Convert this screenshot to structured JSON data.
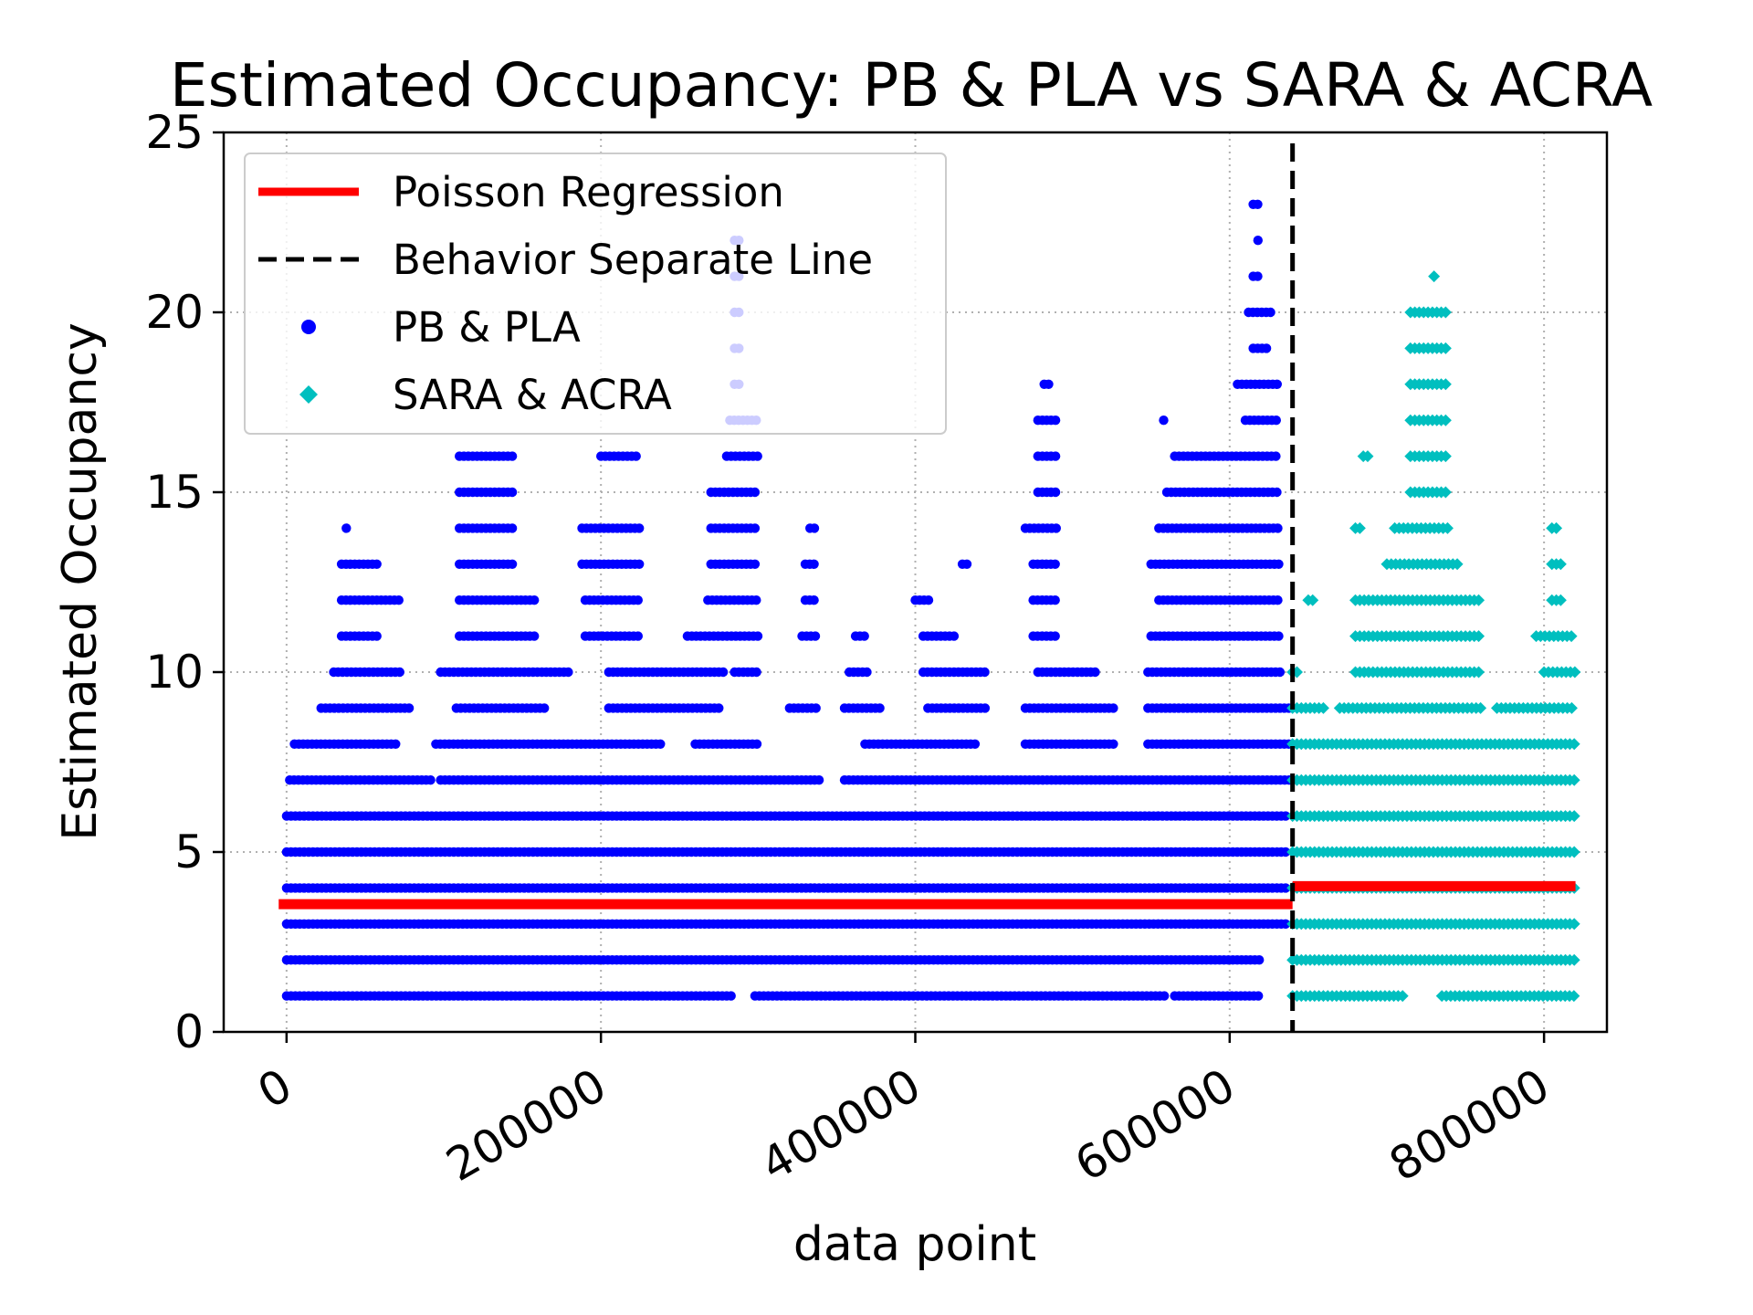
{
  "chart_data": {
    "type": "scatter",
    "title": "Estimated Occupancy: PB & PLA vs SARA & ACRA",
    "xlabel": "data point",
    "ylabel": "Estimated Occupancy",
    "xlim": [
      -40000,
      840000
    ],
    "ylim": [
      0,
      25
    ],
    "xticks": [
      0,
      200000,
      400000,
      600000,
      800000
    ],
    "xtick_labels": [
      "0",
      "200000",
      "400000",
      "600000",
      "800000"
    ],
    "yticks": [
      0,
      5,
      10,
      15,
      20,
      25
    ],
    "ytick_labels": [
      "0",
      "5",
      "10",
      "15",
      "20",
      "25"
    ],
    "grid": true,
    "legend_position": "upper-left",
    "legend": [
      {
        "label": "Poisson Regression",
        "kind": "line",
        "color": "#ff0000"
      },
      {
        "label": "Behavior Separate Line",
        "kind": "dashed-line",
        "color": "#000000"
      },
      {
        "label": "PB & PLA",
        "kind": "circle",
        "color": "#0000ff"
      },
      {
        "label": "SARA & ACRA",
        "kind": "diamond",
        "color": "#00bfbf"
      }
    ],
    "separator_x": 640000,
    "series": [
      {
        "name": "Poisson Regression",
        "kind": "line",
        "color": "#ff0000",
        "segments": [
          {
            "x": [
              -5000,
              640000
            ],
            "y": [
              3.55,
              3.55
            ]
          },
          {
            "x": [
              640000,
              820000
            ],
            "y": [
              4.05,
              4.05
            ]
          }
        ]
      },
      {
        "name": "PB & PLA",
        "kind": "scatter",
        "marker": "circle",
        "color": "#0000ff",
        "x_range": [
          0,
          638000
        ],
        "points": [
          {
            "y": 1,
            "ranges": [
              [
                0,
                285000
              ],
              [
                298000,
                560000
              ],
              [
                565000,
                620000
              ]
            ]
          },
          {
            "y": 2,
            "ranges": [
              [
                0,
                620000
              ]
            ]
          },
          {
            "y": 3,
            "ranges": [
              [
                0,
                638000
              ]
            ]
          },
          {
            "y": 4,
            "ranges": [
              [
                0,
                638000
              ]
            ]
          },
          {
            "y": 5,
            "ranges": [
              [
                0,
                638000
              ]
            ]
          },
          {
            "y": 6,
            "ranges": [
              [
                0,
                638000
              ]
            ]
          },
          {
            "y": 7,
            "ranges": [
              [
                2000,
                92000
              ],
              [
                98000,
                340000
              ],
              [
                355000,
                638000
              ]
            ]
          },
          {
            "y": 8,
            "ranges": [
              [
                5000,
                72000
              ],
              [
                95000,
                240000
              ],
              [
                260000,
                300000
              ],
              [
                368000,
                440000
              ],
              [
                470000,
                528000
              ],
              [
                548000,
                638000
              ]
            ]
          },
          {
            "y": 9,
            "ranges": [
              [
                22000,
                78000
              ],
              [
                108000,
                165000
              ],
              [
                205000,
                275000
              ],
              [
                320000,
                338000
              ],
              [
                355000,
                380000
              ],
              [
                408000,
                445000
              ],
              [
                470000,
                528000
              ],
              [
                548000,
                638000
              ]
            ]
          },
          {
            "y": 10,
            "ranges": [
              [
                30000,
                72000
              ],
              [
                98000,
                180000
              ],
              [
                205000,
                280000
              ],
              [
                285000,
                300000
              ],
              [
                358000,
                370000
              ],
              [
                405000,
                445000
              ],
              [
                478000,
                515000
              ],
              [
                548000,
                632000
              ]
            ]
          },
          {
            "y": 11,
            "ranges": [
              [
                35000,
                60000
              ],
              [
                110000,
                160000
              ],
              [
                190000,
                225000
              ],
              [
                255000,
                300000
              ],
              [
                328000,
                338000
              ],
              [
                362000,
                368000
              ],
              [
                405000,
                425000
              ],
              [
                475000,
                490000
              ],
              [
                550000,
                632000
              ]
            ]
          },
          {
            "y": 12,
            "ranges": [
              [
                35000,
                72000
              ],
              [
                110000,
                160000
              ],
              [
                190000,
                225000
              ],
              [
                268000,
                300000
              ],
              [
                330000,
                338000
              ],
              [
                400000,
                410000
              ],
              [
                475000,
                490000
              ],
              [
                555000,
                632000
              ]
            ]
          },
          {
            "y": 13,
            "ranges": [
              [
                35000,
                60000
              ],
              [
                110000,
                145000
              ],
              [
                188000,
                225000
              ],
              [
                270000,
                300000
              ],
              [
                330000,
                338000
              ],
              [
                430000,
                433000
              ],
              [
                475000,
                490000
              ],
              [
                550000,
                632000
              ]
            ]
          },
          {
            "y": 14,
            "ranges": [
              [
                38000,
                40000
              ],
              [
                110000,
                145000
              ],
              [
                188000,
                225000
              ],
              [
                270000,
                300000
              ],
              [
                333000,
                336000
              ],
              [
                470000,
                490000
              ],
              [
                555000,
                632000
              ]
            ]
          },
          {
            "y": 15,
            "ranges": [
              [
                110000,
                145000
              ],
              [
                270000,
                300000
              ],
              [
                478000,
                490000
              ],
              [
                560000,
                632000
              ]
            ]
          },
          {
            "y": 16,
            "ranges": [
              [
                110000,
                145000
              ],
              [
                200000,
                225000
              ],
              [
                280000,
                300000
              ],
              [
                478000,
                490000
              ],
              [
                565000,
                632000
              ]
            ]
          },
          {
            "y": 17,
            "ranges": [
              [
                282000,
                300000
              ],
              [
                478000,
                490000
              ],
              [
                558000,
                560000
              ],
              [
                610000,
                632000
              ]
            ]
          },
          {
            "y": 18,
            "ranges": [
              [
                285000,
                290000
              ],
              [
                482000,
                485000
              ],
              [
                605000,
                632000
              ]
            ]
          },
          {
            "y": 19,
            "ranges": [
              [
                285000,
                290000
              ],
              [
                615000,
                625000
              ]
            ]
          },
          {
            "y": 20,
            "ranges": [
              [
                285000,
                290000
              ],
              [
                612000,
                627000
              ]
            ]
          },
          {
            "y": 21,
            "ranges": [
              [
                285000,
                288000
              ],
              [
                615000,
                620000
              ]
            ]
          },
          {
            "y": 22,
            "ranges": [
              [
                285000,
                288000
              ],
              [
                618000,
                620000
              ]
            ]
          },
          {
            "y": 23,
            "ranges": [
              [
                615000,
                618000
              ]
            ]
          }
        ]
      },
      {
        "name": "SARA & ACRA",
        "kind": "scatter",
        "marker": "diamond",
        "color": "#00bfbf",
        "x_range": [
          640000,
          820000
        ],
        "points": [
          {
            "y": 1,
            "ranges": [
              [
                640000,
                710000
              ],
              [
                735000,
                820000
              ]
            ]
          },
          {
            "y": 2,
            "ranges": [
              [
                640000,
                820000
              ]
            ]
          },
          {
            "y": 3,
            "ranges": [
              [
                640000,
                820000
              ]
            ]
          },
          {
            "y": 4,
            "ranges": [
              [
                640000,
                820000
              ]
            ]
          },
          {
            "y": 5,
            "ranges": [
              [
                640000,
                820000
              ]
            ]
          },
          {
            "y": 6,
            "ranges": [
              [
                640000,
                820000
              ]
            ]
          },
          {
            "y": 7,
            "ranges": [
              [
                640000,
                820000
              ]
            ]
          },
          {
            "y": 8,
            "ranges": [
              [
                640000,
                820000
              ]
            ]
          },
          {
            "y": 9,
            "ranges": [
              [
                640000,
                660000
              ],
              [
                670000,
                760000
              ],
              [
                770000,
                820000
              ]
            ]
          },
          {
            "y": 10,
            "ranges": [
              [
                640000,
                645000
              ],
              [
                680000,
                760000
              ],
              [
                800000,
                820000
              ]
            ]
          },
          {
            "y": 11,
            "ranges": [
              [
                680000,
                760000
              ],
              [
                795000,
                820000
              ]
            ]
          },
          {
            "y": 12,
            "ranges": [
              [
                650000,
                655000
              ],
              [
                680000,
                760000
              ],
              [
                805000,
                812000
              ]
            ]
          },
          {
            "y": 13,
            "ranges": [
              [
                700000,
                745000
              ],
              [
                805000,
                812000
              ]
            ]
          },
          {
            "y": 14,
            "ranges": [
              [
                680000,
                685000
              ],
              [
                705000,
                740000
              ],
              [
                805000,
                810000
              ]
            ]
          },
          {
            "y": 15,
            "ranges": [
              [
                715000,
                740000
              ]
            ]
          },
          {
            "y": 16,
            "ranges": [
              [
                685000,
                690000
              ],
              [
                715000,
                740000
              ]
            ]
          },
          {
            "y": 17,
            "ranges": [
              [
                715000,
                740000
              ]
            ]
          },
          {
            "y": 18,
            "ranges": [
              [
                715000,
                740000
              ]
            ]
          },
          {
            "y": 19,
            "ranges": [
              [
                715000,
                740000
              ]
            ]
          },
          {
            "y": 20,
            "ranges": [
              [
                715000,
                740000
              ]
            ]
          },
          {
            "y": 21,
            "ranges": [
              [
                730000,
                732000
              ]
            ]
          }
        ]
      }
    ]
  }
}
